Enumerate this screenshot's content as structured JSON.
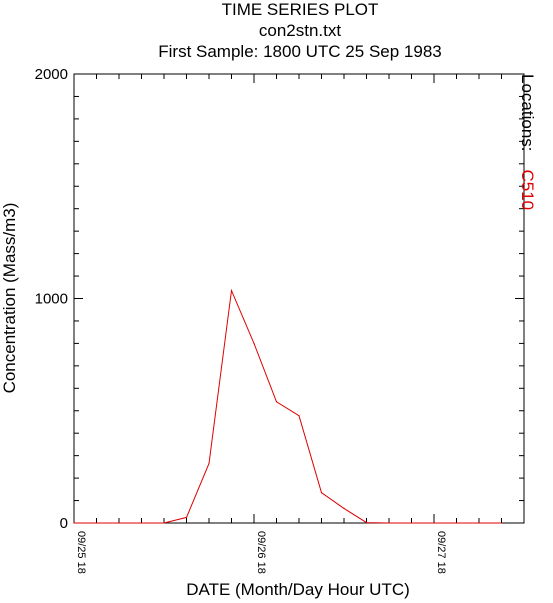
{
  "chart_data": {
    "type": "line",
    "title": "TIME SERIES PLOT",
    "subtitle": "con2stn.txt",
    "subtitle2": "First Sample: 1800 UTC 25 Sep 1983",
    "xlabel": "DATE (Month/Day Hour UTC)",
    "ylabel": "Concentration (Mass/m3)",
    "legend_title": "Locations:",
    "legend_position": "right (vertical)",
    "ylim": [
      0,
      2000
    ],
    "yticks": [
      0,
      1000,
      2000
    ],
    "xlim_hours": [
      0,
      60
    ],
    "xtick_labels": [
      {
        "label": "09/25 18",
        "hour": 0
      },
      {
        "label": "09/26 18",
        "hour": 24
      },
      {
        "label": "09/27 18",
        "hour": 48
      }
    ],
    "series": [
      {
        "name": "C510",
        "color": "#e00000",
        "x_hours": [
          0,
          3,
          6,
          9,
          12,
          15,
          18,
          21,
          24,
          27,
          30,
          33,
          36,
          39,
          42,
          45,
          48,
          51,
          54,
          57
        ],
        "values": [
          0,
          0,
          0,
          0,
          0,
          25,
          265,
          1035,
          800,
          540,
          478,
          135,
          65,
          2,
          0,
          0,
          0,
          0,
          0,
          0
        ]
      }
    ],
    "grid": false
  }
}
